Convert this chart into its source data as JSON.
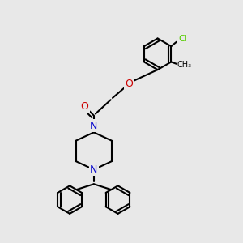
{
  "bg_color": "#e8e8e8",
  "atom_colors": {
    "C": "#000000",
    "N": "#0000cc",
    "O": "#cc0000",
    "Cl": "#55cc00",
    "H": "#000000"
  },
  "bond_color": "#000000",
  "bond_width": 1.5
}
